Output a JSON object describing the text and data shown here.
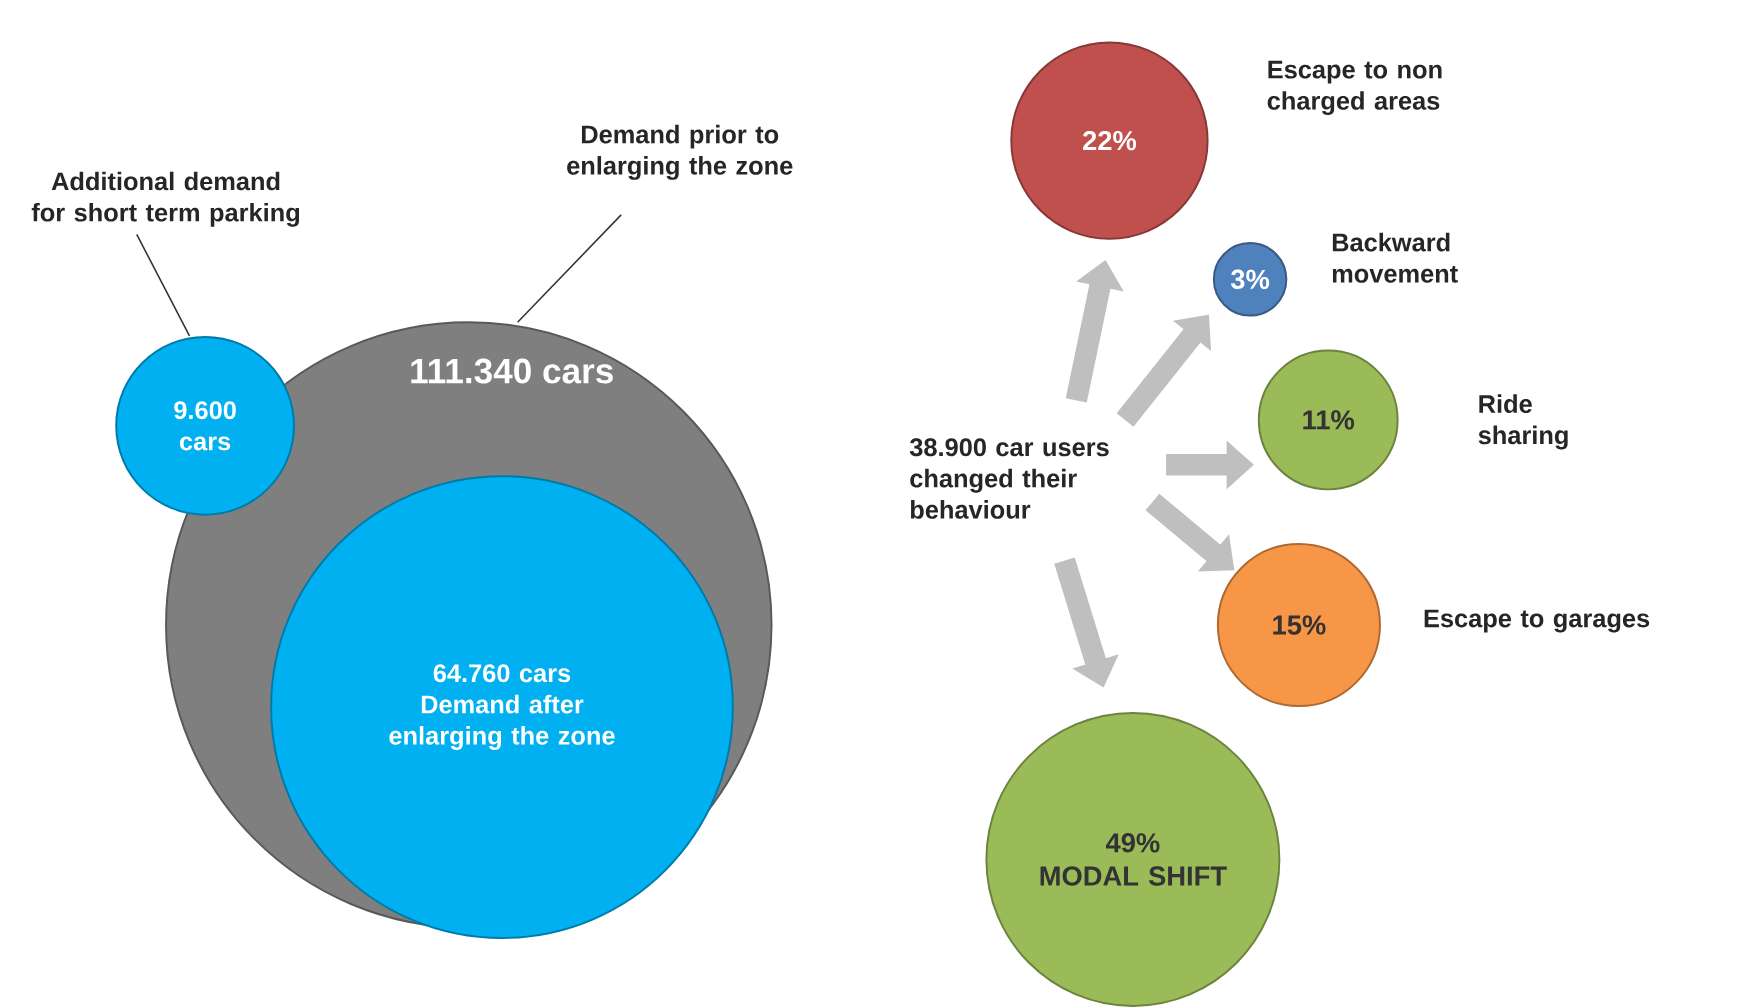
{
  "chart_data": [
    {
      "type": "other",
      "categories": [
        "Demand prior to enlarging the zone",
        "Demand after enlarging the zone",
        "Additional demand for short term parking"
      ],
      "values": [
        111340,
        64760,
        9600
      ],
      "value_labels": [
        "111.340 cars",
        "64.760 cars",
        "9.600 cars"
      ],
      "colors": [
        "#7f7f7f",
        "#00b0f0",
        "#00b0f0"
      ]
    },
    {
      "type": "other",
      "categories": [
        "Escape to non charged areas",
        "Backward movement",
        "Ride sharing",
        "Escape to garages",
        "MODAL SHIFT"
      ],
      "values": [
        22,
        3,
        11,
        15,
        49
      ],
      "value_labels": [
        "22%",
        "3%",
        "11%",
        "15%",
        "49%"
      ],
      "colors": [
        "#c0504d",
        "#4f81bd",
        "#9bbb59",
        "#f79646",
        "#9bbb59"
      ],
      "annotations": [
        "38.900 car users changed their behaviour"
      ]
    }
  ]
}
